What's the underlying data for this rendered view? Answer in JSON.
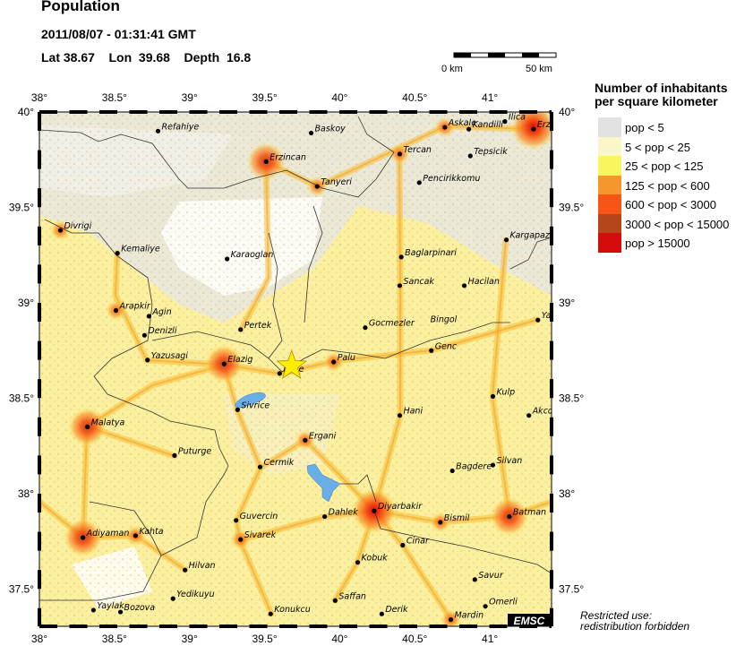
{
  "header": {
    "title": "Population",
    "datetime": "2011/08/07 - 01:31:41 GMT",
    "coords": "Lat 38.67    Lon  39.68    Depth  16.8"
  },
  "scale_bar": {
    "start_label": "0 km",
    "end_label": "50 km"
  },
  "map": {
    "lon_range": [
      38,
      41.42
    ],
    "lat_range": [
      37.3,
      40
    ],
    "lon_ticks": [
      {
        "v": 38,
        "label": "38°"
      },
      {
        "v": 38.5,
        "label": "38.5°"
      },
      {
        "v": 39,
        "label": "39°"
      },
      {
        "v": 39.5,
        "label": "39.5°"
      },
      {
        "v": 40,
        "label": "40°"
      },
      {
        "v": 40.5,
        "label": "40.5°"
      },
      {
        "v": 41,
        "label": "41°"
      }
    ],
    "lat_ticks": [
      {
        "v": 40,
        "label": "40°"
      },
      {
        "v": 39.5,
        "label": "39.5°"
      },
      {
        "v": 39,
        "label": "39°"
      },
      {
        "v": 38.5,
        "label": "38.5°"
      },
      {
        "v": 38,
        "label": "38°"
      },
      {
        "v": 37.5,
        "label": "37.5°"
      }
    ],
    "epicenter": {
      "lat": 38.67,
      "lon": 39.68,
      "icon": "star-icon",
      "color": "#ffee00"
    },
    "lake_color": "#6aaee8",
    "cities": [
      {
        "name": "Refahiye",
        "lon": 38.79,
        "lat": 39.9
      },
      {
        "name": "Baskoy",
        "lon": 39.81,
        "lat": 39.89
      },
      {
        "name": "Erzincan",
        "lon": 39.51,
        "lat": 39.74
      },
      {
        "name": "Tanyeri",
        "lon": 39.85,
        "lat": 39.61
      },
      {
        "name": "Askale",
        "lon": 40.7,
        "lat": 39.92
      },
      {
        "name": "Kandilli",
        "lon": 40.86,
        "lat": 39.91
      },
      {
        "name": "Ilica",
        "lon": 41.1,
        "lat": 39.95
      },
      {
        "name": "Erzu",
        "lon": 41.29,
        "lat": 39.91
      },
      {
        "name": "Tercan",
        "lon": 40.4,
        "lat": 39.78
      },
      {
        "name": "Tepsicik",
        "lon": 40.87,
        "lat": 39.77
      },
      {
        "name": "Pencirikkomu",
        "lon": 40.53,
        "lat": 39.63
      },
      {
        "name": "Divrigi",
        "lon": 38.14,
        "lat": 39.38
      },
      {
        "name": "Kemaliye",
        "lon": 38.52,
        "lat": 39.26
      },
      {
        "name": "Karaoglan",
        "lon": 39.25,
        "lat": 39.23
      },
      {
        "name": "Kargapaz",
        "lon": 41.11,
        "lat": 39.33
      },
      {
        "name": "Baglarpinari",
        "lon": 40.41,
        "lat": 39.24
      },
      {
        "name": "Sancak",
        "lon": 40.4,
        "lat": 39.09
      },
      {
        "name": "Hacilan",
        "lon": 40.83,
        "lat": 39.09
      },
      {
        "name": "Arapkir",
        "lon": 38.51,
        "lat": 38.96
      },
      {
        "name": "Agin",
        "lon": 38.73,
        "lat": 38.93
      },
      {
        "name": "Denizli",
        "lon": 38.7,
        "lat": 38.83
      },
      {
        "name": "Pertek",
        "lon": 39.34,
        "lat": 38.86
      },
      {
        "name": "Gocmezler",
        "lon": 40.17,
        "lat": 38.87
      },
      {
        "name": "Bingol",
        "lon": 40.58,
        "lat": 38.89
      },
      {
        "name": "Ya",
        "lon": 41.32,
        "lat": 38.91
      },
      {
        "name": "Genc",
        "lon": 40.61,
        "lat": 38.75
      },
      {
        "name": "Yazusagi",
        "lon": 38.72,
        "lat": 38.7
      },
      {
        "name": "Elazig",
        "lon": 39.23,
        "lat": 38.68
      },
      {
        "name": "Icme",
        "lon": 39.6,
        "lat": 38.63
      },
      {
        "name": "Palu",
        "lon": 39.96,
        "lat": 38.69
      },
      {
        "name": "Kulp",
        "lon": 41.02,
        "lat": 38.51
      },
      {
        "name": "Hani",
        "lon": 40.4,
        "lat": 38.41
      },
      {
        "name": "Akco",
        "lon": 41.26,
        "lat": 38.41
      },
      {
        "name": "Sivrice",
        "lon": 39.32,
        "lat": 38.44
      },
      {
        "name": "Malatya",
        "lon": 38.32,
        "lat": 38.35
      },
      {
        "name": "Ergani",
        "lon": 39.77,
        "lat": 38.28
      },
      {
        "name": "Puturge",
        "lon": 38.9,
        "lat": 38.2
      },
      {
        "name": "Cermik",
        "lon": 39.47,
        "lat": 38.14
      },
      {
        "name": "Bagdere",
        "lon": 40.75,
        "lat": 38.12
      },
      {
        "name": "Silvan",
        "lon": 41.02,
        "lat": 38.15
      },
      {
        "name": "Diyarbakir",
        "lon": 40.23,
        "lat": 37.91
      },
      {
        "name": "Bismil",
        "lon": 40.67,
        "lat": 37.85
      },
      {
        "name": "Batman",
        "lon": 41.13,
        "lat": 37.88
      },
      {
        "name": "Guvercin",
        "lon": 39.31,
        "lat": 37.86
      },
      {
        "name": "Dahlek",
        "lon": 39.9,
        "lat": 37.88
      },
      {
        "name": "Adiyaman",
        "lon": 38.29,
        "lat": 37.77
      },
      {
        "name": "Kahta",
        "lon": 38.64,
        "lat": 37.78
      },
      {
        "name": "Sivarek",
        "lon": 39.34,
        "lat": 37.76
      },
      {
        "name": "Cinar",
        "lon": 40.42,
        "lat": 37.73
      },
      {
        "name": "Kobuk",
        "lon": 40.12,
        "lat": 37.64
      },
      {
        "name": "Hilvan",
        "lon": 38.97,
        "lat": 37.6
      },
      {
        "name": "Savur",
        "lon": 40.9,
        "lat": 37.55
      },
      {
        "name": "Yedikuyu",
        "lon": 38.89,
        "lat": 37.45
      },
      {
        "name": "Saffan",
        "lon": 39.97,
        "lat": 37.44
      },
      {
        "name": "Omerli",
        "lon": 40.97,
        "lat": 37.41
      },
      {
        "name": "Yaylak",
        "lon": 38.36,
        "lat": 37.39
      },
      {
        "name": "Bozova",
        "lon": 38.54,
        "lat": 37.38
      },
      {
        "name": "Konukcu",
        "lon": 39.54,
        "lat": 37.37
      },
      {
        "name": "Derik",
        "lon": 40.28,
        "lat": 37.37
      },
      {
        "name": "Mardin",
        "lon": 40.74,
        "lat": 37.34
      }
    ],
    "hotspots": [
      {
        "lon": 39.51,
        "lat": 39.74,
        "level": "high"
      },
      {
        "lon": 41.29,
        "lat": 39.92,
        "level": "highest"
      },
      {
        "lon": 39.23,
        "lat": 38.68,
        "level": "high"
      },
      {
        "lon": 38.32,
        "lat": 38.35,
        "level": "high"
      },
      {
        "lon": 40.23,
        "lat": 37.91,
        "level": "highest"
      },
      {
        "lon": 41.13,
        "lat": 37.88,
        "level": "high"
      },
      {
        "lon": 38.29,
        "lat": 37.77,
        "level": "high"
      },
      {
        "lon": 40.67,
        "lat": 37.85,
        "level": "med"
      },
      {
        "lon": 39.34,
        "lat": 37.76,
        "level": "med"
      },
      {
        "lon": 39.77,
        "lat": 38.28,
        "level": "med"
      },
      {
        "lon": 38.64,
        "lat": 37.78,
        "level": "med"
      },
      {
        "lon": 40.74,
        "lat": 37.34,
        "level": "med"
      },
      {
        "lon": 38.14,
        "lat": 39.38,
        "level": "med"
      },
      {
        "lon": 38.51,
        "lat": 38.96,
        "level": "med"
      },
      {
        "lon": 40.4,
        "lat": 39.78,
        "level": "med"
      },
      {
        "lon": 39.96,
        "lat": 38.69,
        "level": "med"
      },
      {
        "lon": 40.7,
        "lat": 39.92,
        "level": "med"
      },
      {
        "lon": 39.85,
        "lat": 39.61,
        "level": "med"
      }
    ]
  },
  "legend": {
    "title_line1": "Number of inhabitants",
    "title_line2": "per square kilometer",
    "items": [
      {
        "label": "pop < 5",
        "color": "#e2e2e2"
      },
      {
        "label": "5 < pop < 25",
        "color": "#f9f6c8"
      },
      {
        "label": "25 < pop < 125",
        "color": "#f9f55e"
      },
      {
        "label": "125 < pop < 600",
        "color": "#f8962e"
      },
      {
        "label": "600 < pop < 3000",
        "color": "#f75516"
      },
      {
        "label": "3000 < pop < 15000",
        "color": "#b5451a"
      },
      {
        "label": "pop > 15000",
        "color": "#d40c0c"
      }
    ]
  },
  "footer": {
    "logo": "EMSC",
    "restricted_line1": "Restricted use:",
    "restricted_line2": "redistribution forbidden"
  }
}
